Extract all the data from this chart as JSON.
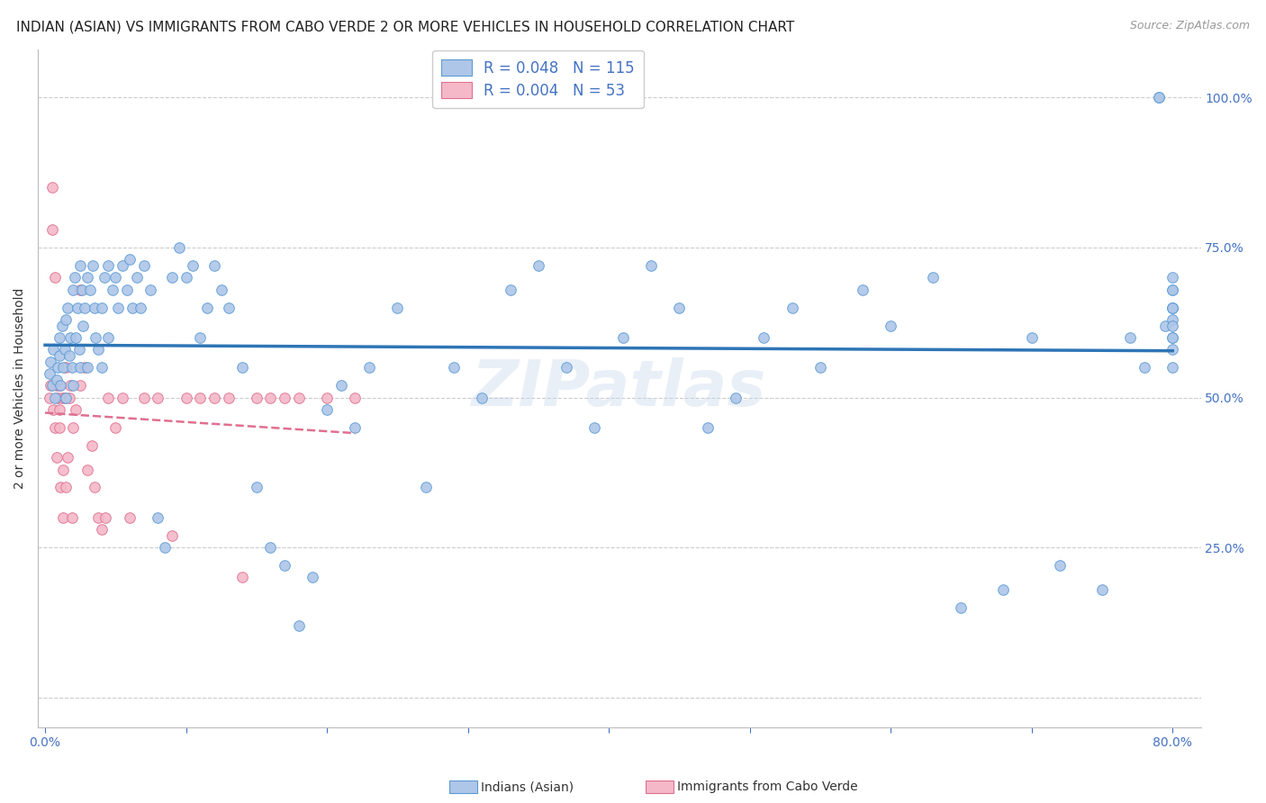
{
  "title": "INDIAN (ASIAN) VS IMMIGRANTS FROM CABO VERDE 2 OR MORE VEHICLES IN HOUSEHOLD CORRELATION CHART",
  "source": "Source: ZipAtlas.com",
  "ylabel": "2 or more Vehicles in Household",
  "blue_color": "#aec6e8",
  "blue_edge": "#5b9bd5",
  "pink_color": "#f4b8c8",
  "pink_edge": "#e07090",
  "trend_blue": "#2e75b6",
  "trend_pink": "#e07090",
  "grid_color": "#cccccc",
  "axis_color": "#4472c4",
  "r_blue": 0.048,
  "n_blue": 115,
  "r_pink": 0.004,
  "n_pink": 53,
  "legend_label_blue": "Indians (Asian)",
  "legend_label_pink": "Immigrants from Cabo Verde",
  "marker_size": 70,
  "background_color": "#ffffff",
  "title_fontsize": 11,
  "axis_label_fontsize": 10,
  "tick_fontsize": 10,
  "watermark": "ZIPatlas",
  "blue_x": [
    0.003,
    0.004,
    0.005,
    0.006,
    0.007,
    0.008,
    0.009,
    0.01,
    0.01,
    0.011,
    0.012,
    0.013,
    0.014,
    0.015,
    0.015,
    0.016,
    0.017,
    0.018,
    0.019,
    0.02,
    0.02,
    0.021,
    0.022,
    0.023,
    0.024,
    0.025,
    0.025,
    0.026,
    0.027,
    0.028,
    0.03,
    0.03,
    0.032,
    0.034,
    0.035,
    0.036,
    0.038,
    0.04,
    0.04,
    0.042,
    0.045,
    0.045,
    0.048,
    0.05,
    0.052,
    0.055,
    0.058,
    0.06,
    0.062,
    0.065,
    0.068,
    0.07,
    0.075,
    0.08,
    0.085,
    0.09,
    0.095,
    0.1,
    0.105,
    0.11,
    0.115,
    0.12,
    0.125,
    0.13,
    0.14,
    0.15,
    0.16,
    0.17,
    0.18,
    0.19,
    0.2,
    0.21,
    0.22,
    0.23,
    0.25,
    0.27,
    0.29,
    0.31,
    0.33,
    0.35,
    0.37,
    0.39,
    0.41,
    0.43,
    0.45,
    0.47,
    0.49,
    0.51,
    0.53,
    0.55,
    0.58,
    0.6,
    0.63,
    0.65,
    0.68,
    0.7,
    0.72,
    0.75,
    0.77,
    0.78,
    0.79,
    0.79,
    0.795,
    0.8,
    0.8,
    0.8,
    0.8,
    0.8,
    0.8,
    0.8,
    0.8,
    0.8,
    0.8,
    0.8,
    0.8
  ],
  "blue_y": [
    0.54,
    0.56,
    0.52,
    0.58,
    0.5,
    0.53,
    0.55,
    0.57,
    0.6,
    0.52,
    0.62,
    0.55,
    0.58,
    0.63,
    0.5,
    0.65,
    0.57,
    0.6,
    0.55,
    0.68,
    0.52,
    0.7,
    0.6,
    0.65,
    0.58,
    0.72,
    0.55,
    0.68,
    0.62,
    0.65,
    0.7,
    0.55,
    0.68,
    0.72,
    0.65,
    0.6,
    0.58,
    0.65,
    0.55,
    0.7,
    0.72,
    0.6,
    0.68,
    0.7,
    0.65,
    0.72,
    0.68,
    0.73,
    0.65,
    0.7,
    0.65,
    0.72,
    0.68,
    0.3,
    0.25,
    0.7,
    0.75,
    0.7,
    0.72,
    0.6,
    0.65,
    0.72,
    0.68,
    0.65,
    0.55,
    0.35,
    0.25,
    0.22,
    0.12,
    0.2,
    0.48,
    0.52,
    0.45,
    0.55,
    0.65,
    0.35,
    0.55,
    0.5,
    0.68,
    0.72,
    0.55,
    0.45,
    0.6,
    0.72,
    0.65,
    0.45,
    0.5,
    0.6,
    0.65,
    0.55,
    0.68,
    0.62,
    0.7,
    0.15,
    0.18,
    0.6,
    0.22,
    0.18,
    0.6,
    0.55,
    1.0,
    1.0,
    0.62,
    0.65,
    0.58,
    0.63,
    0.6,
    0.68,
    0.65,
    0.7,
    0.62,
    0.55,
    0.6,
    0.68,
    0.65
  ],
  "pink_x": [
    0.003,
    0.004,
    0.005,
    0.005,
    0.006,
    0.007,
    0.007,
    0.008,
    0.008,
    0.009,
    0.01,
    0.01,
    0.01,
    0.011,
    0.012,
    0.013,
    0.013,
    0.014,
    0.015,
    0.015,
    0.016,
    0.017,
    0.018,
    0.019,
    0.02,
    0.022,
    0.025,
    0.025,
    0.028,
    0.03,
    0.033,
    0.035,
    0.038,
    0.04,
    0.043,
    0.045,
    0.05,
    0.055,
    0.06,
    0.07,
    0.08,
    0.09,
    0.1,
    0.11,
    0.12,
    0.13,
    0.14,
    0.15,
    0.16,
    0.17,
    0.18,
    0.2,
    0.22
  ],
  "pink_y": [
    0.5,
    0.52,
    0.85,
    0.78,
    0.48,
    0.45,
    0.7,
    0.52,
    0.4,
    0.5,
    0.48,
    0.52,
    0.45,
    0.35,
    0.5,
    0.3,
    0.38,
    0.5,
    0.55,
    0.35,
    0.4,
    0.5,
    0.52,
    0.3,
    0.45,
    0.48,
    0.68,
    0.52,
    0.55,
    0.38,
    0.42,
    0.35,
    0.3,
    0.28,
    0.3,
    0.5,
    0.45,
    0.5,
    0.3,
    0.5,
    0.5,
    0.27,
    0.5,
    0.5,
    0.5,
    0.5,
    0.2,
    0.5,
    0.5,
    0.5,
    0.5,
    0.5,
    0.5
  ]
}
